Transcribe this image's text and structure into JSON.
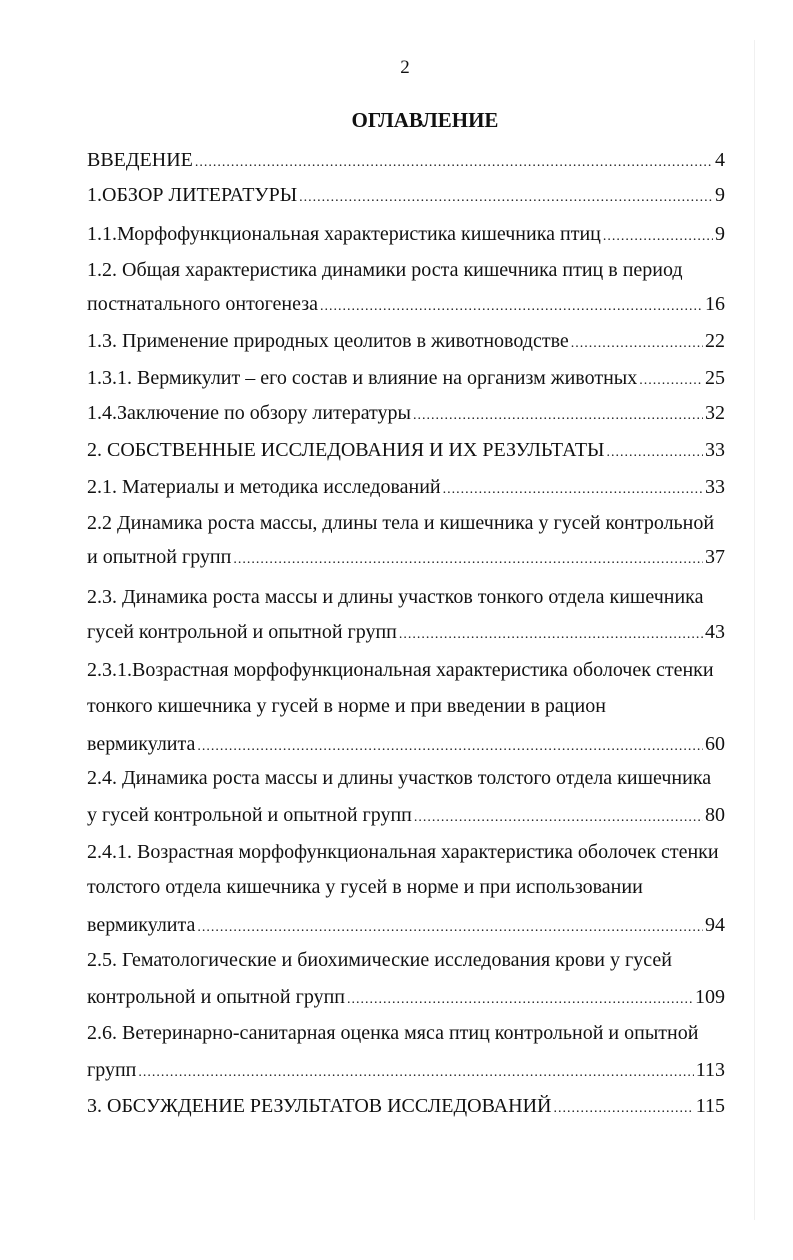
{
  "page_number": "2",
  "title": "ОГЛАВЛЕНИЕ",
  "lines": [
    {
      "text": " ВВЕДЕНИЕ ",
      "page": "4"
    },
    {
      "text": "1.ОБЗОР ЛИТЕРАТУРЫ",
      "page": "9"
    },
    {
      "text": "1.1.Морфофункциональная характеристика кишечника птиц",
      "page": "9"
    },
    {
      "text": "1.2. Общая характеристика динамики роста кишечника птиц в период",
      "page": null
    },
    {
      "text": "постнатального онтогенеза ",
      "page": "16"
    },
    {
      "text": "1.3. Применение природных цеолитов  в животноводстве ",
      "page": "22"
    },
    {
      "text": "1.3.1. Вермикулит – его состав и влияние на организм животных",
      "page": "25"
    },
    {
      "text": "1.4.Заключение по обзору литературы ",
      "page": "32"
    },
    {
      "text": "2. СОБСТВЕННЫЕ ИССЛЕДОВАНИЯ И ИХ РЕЗУЛЬТАТЫ ",
      "page": "33"
    },
    {
      "text": "2.1. Материалы и методика исследований ",
      "page": "33"
    },
    {
      "text": "2.2 Динамика роста  массы, длины тела и кишечника у гусей контрольной",
      "page": null
    },
    {
      "text": "и опытной групп",
      "page": "37"
    },
    {
      "text": "2.3. Динамика роста массы и длины участков  тонкого отдела кишечника",
      "page": null
    },
    {
      "text": "гусей контрольной и опытной групп ",
      "page": "43"
    },
    {
      "text": "2.3.1.Возрастная морфофункциональная характеристика оболочек стенки",
      "page": null
    },
    {
      "text": "тонкого кишечника у гусей в норме и при введении в рацион",
      "page": null
    },
    {
      "text": "вермикулита",
      "page": "60"
    },
    {
      "text": "2.4. Динамика роста массы и  длины участков толстого отдела  кишечника",
      "page": null
    },
    {
      "text": "у гусей контрольной и опытной групп ",
      "page": "80"
    },
    {
      "text": "2.4.1. Возрастная морфофункциональная характеристика оболочек стенки",
      "page": null
    },
    {
      "text": "толстого отдела кишечника у гусей в норме и при использовании",
      "page": null
    },
    {
      "text": "вермикулита",
      "page": "94"
    },
    {
      "text": "2.5. Гематологические и биохимические исследования крови у гусей",
      "page": null
    },
    {
      "text": "контрольной и опытной групп",
      "page": "109"
    },
    {
      "text": "2.6. Ветеринарно-санитарная оценка мяса птиц контрольной и опытной",
      "page": null
    },
    {
      "text": "групп",
      "page": "113"
    },
    {
      "text": "3. ОБСУЖДЕНИЕ РЕЗУЛЬТАТОВ ИССЛЕДОВАНИЙ",
      "page": "115"
    }
  ]
}
